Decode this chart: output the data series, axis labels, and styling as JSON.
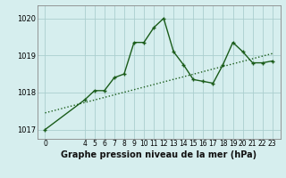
{
  "x_data": [
    0,
    4,
    5,
    6,
    7,
    8,
    9,
    10,
    11,
    12,
    13,
    14,
    15,
    16,
    17,
    18,
    19,
    20,
    21,
    22,
    23
  ],
  "y_data": [
    1017.0,
    1017.8,
    1018.05,
    1018.05,
    1018.4,
    1018.5,
    1019.35,
    1019.35,
    1019.75,
    1020.0,
    1019.1,
    1018.75,
    1018.35,
    1018.3,
    1018.25,
    1018.75,
    1019.35,
    1019.1,
    1018.8,
    1018.8,
    1018.85
  ],
  "trend_x": [
    0,
    23
  ],
  "trend_y": [
    1017.45,
    1019.05
  ],
  "bg_color": "#d6eeee",
  "line_color": "#1a5c1a",
  "grid_color": "#aacece",
  "xlabel": "Graphe pression niveau de la mer (hPa)",
  "xtick_positions": [
    0,
    4,
    5,
    6,
    7,
    8,
    9,
    10,
    11,
    12,
    13,
    14,
    15,
    16,
    17,
    18,
    19,
    20,
    21,
    22,
    23
  ],
  "xtick_labels": [
    "0",
    "4",
    "5",
    "6",
    "7",
    "8",
    "9",
    "10",
    "11",
    "12",
    "13",
    "14",
    "15",
    "16",
    "17",
    "18",
    "19",
    "20",
    "21",
    "22",
    "23"
  ],
  "ylim": [
    1016.75,
    1020.35
  ],
  "yticks": [
    1017,
    1018,
    1019,
    1020
  ],
  "xlim": [
    -0.8,
    23.8
  ],
  "marker_size": 3.5,
  "line_width": 1.0,
  "tick_fontsize": 5.5,
  "xlabel_fontsize": 7.0
}
